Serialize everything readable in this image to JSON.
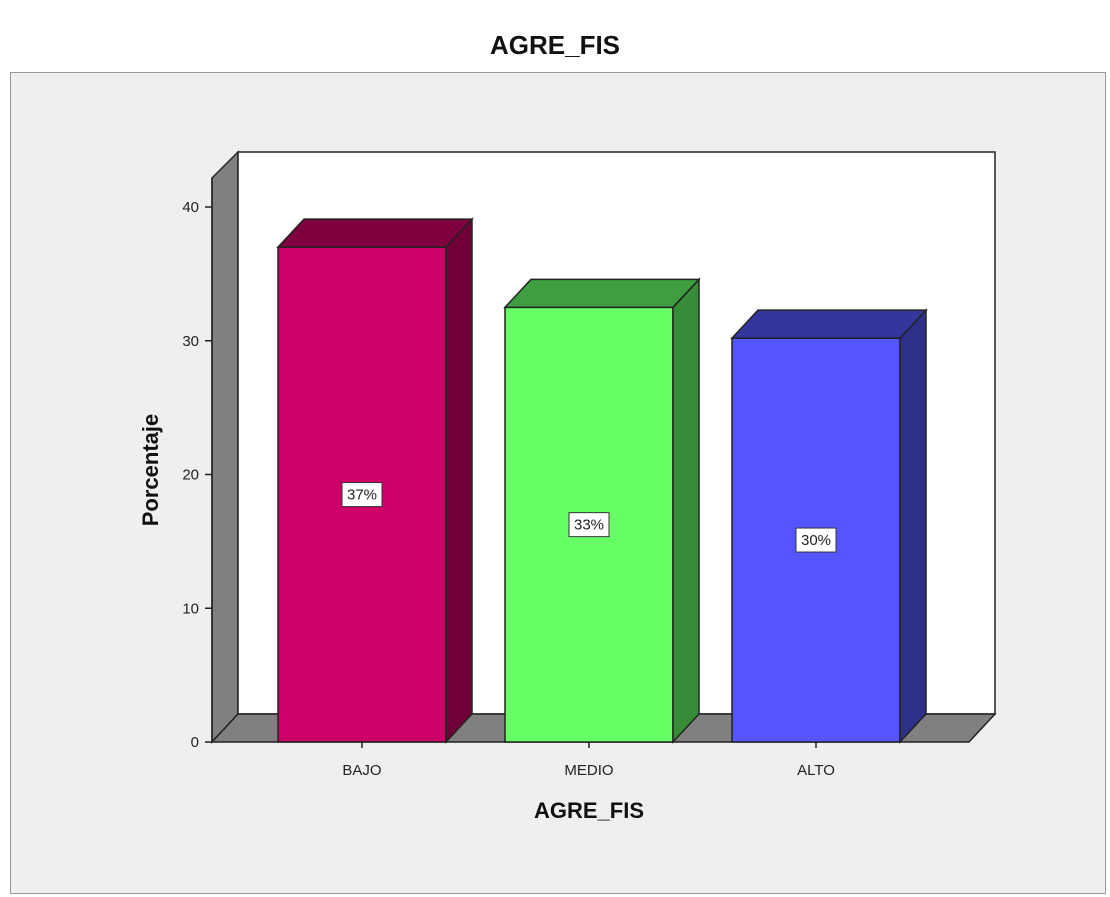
{
  "chart_data": {
    "type": "bar",
    "title": "AGRE_FIS",
    "xlabel": "AGRE_FIS",
    "ylabel": "Porcentaje",
    "categories": [
      "BAJO",
      "MEDIO",
      "ALTO"
    ],
    "values": [
      37,
      32.5,
      30.2
    ],
    "value_labels": [
      "37%",
      "33%",
      "30%"
    ],
    "colors": [
      "#cc0066",
      "#66ff66",
      "#5555ff"
    ],
    "ylim": [
      0,
      40
    ],
    "yticks": [
      0,
      10,
      20,
      30,
      40
    ],
    "style": "3d",
    "grid": false,
    "legend": "none"
  }
}
